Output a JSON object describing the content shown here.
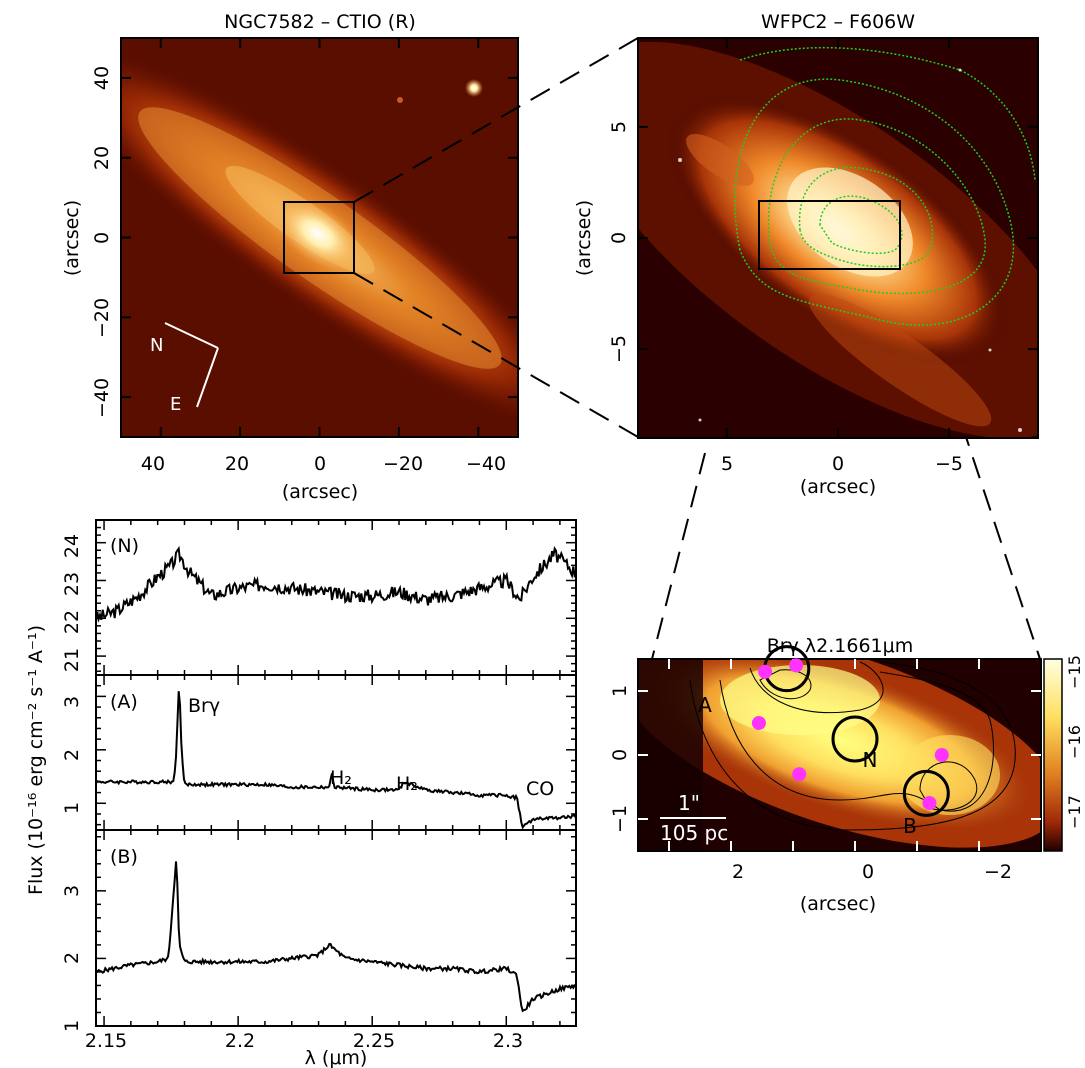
{
  "panels": {
    "ngc": {
      "title": "NGC7582 – CTIO (R)",
      "xlabel": "(arcsec)",
      "ylabel": "(arcsec)",
      "xticks": [
        "40",
        "20",
        "0",
        "−20",
        "−40"
      ],
      "yticks": [
        "40",
        "20",
        "0",
        "−20",
        "−40"
      ],
      "compass_n": "N",
      "compass_e": "E"
    },
    "wfpc": {
      "title": "WFPC2 – F606W",
      "xlabel": "(arcsec)",
      "ylabel": "(arcsec)",
      "xticks": [
        "5",
        "0",
        "−5"
      ],
      "yticks": [
        "5",
        "0",
        "−5"
      ]
    },
    "brg": {
      "title": "Brγ λ2.1661μm",
      "xlabel": "(arcsec)",
      "xticks": [
        "2",
        "0",
        "−2"
      ],
      "yticks": [
        "1",
        "0",
        "−1"
      ],
      "colorbar_ticks": [
        "−15",
        "−16",
        "−17"
      ],
      "label_n": "N",
      "label_a": "A",
      "label_b": "B",
      "scale_top": "1\"",
      "scale_bottom": "105 pc"
    },
    "spectra": {
      "ylabel": "Flux (10⁻¹⁶ erg cm⁻² s⁻¹ A⁻¹)",
      "xlabel": "λ (μm)",
      "xticks": [
        "2.15",
        "2.2",
        "2.25",
        "2.3"
      ],
      "n_label": "(N)",
      "n_yticks": [
        "21",
        "22",
        "23",
        "24"
      ],
      "a_label": "(A)",
      "a_yticks": [
        "1",
        "2",
        "3"
      ],
      "b_label": "(B)",
      "b_yticks": [
        "1",
        "2",
        "3"
      ],
      "line_brg": "Brγ",
      "line_h2a": "H₂",
      "line_h2b": "H₂",
      "line_co": "CO"
    }
  },
  "colors": {
    "image_dark": "#3a0000",
    "image_bright": "#fff6d0",
    "contour_green": "#22cc22",
    "marker_magenta": "#ff33ff"
  },
  "chart_data": [
    {
      "type": "heatmap",
      "title": "NGC7582 – CTIO (R)",
      "xlabel": "(arcsec)",
      "ylabel": "(arcsec)",
      "xlim": [
        50,
        -50
      ],
      "ylim": [
        -50,
        50
      ],
      "box": {
        "x": [
          9,
          -9
        ],
        "y": [
          -9,
          9
        ]
      }
    },
    {
      "type": "heatmap",
      "title": "WFPC2 – F606W",
      "xlabel": "(arcsec)",
      "ylabel": "(arcsec)",
      "xlim": [
        9,
        -9
      ],
      "ylim": [
        -9,
        9
      ],
      "box": {
        "x": [
          3.3,
          -2.8
        ],
        "y": [
          -1.4,
          1.7
        ]
      }
    },
    {
      "type": "heatmap",
      "title": "Brγ λ2.1661μm",
      "xlabel": "(arcsec)",
      "xlim": [
        3.5,
        -3.0
      ],
      "ylim": [
        -1.5,
        1.5
      ],
      "colorbar": [
        -17.3,
        -14.9
      ],
      "circles": [
        {
          "name": "A",
          "x": 1.1,
          "y": 1.35
        },
        {
          "name": "N",
          "x": 0.0,
          "y": 0.25
        },
        {
          "name": "B",
          "x": -1.15,
          "y": -0.6
        }
      ],
      "points": [
        {
          "x": 1.45,
          "y": 1.3
        },
        {
          "x": 0.95,
          "y": 1.4
        },
        {
          "x": 1.55,
          "y": 0.5
        },
        {
          "x": 0.9,
          "y": -0.3
        },
        {
          "x": -1.4,
          "y": 0.0
        },
        {
          "x": -1.2,
          "y": -0.75
        }
      ]
    },
    {
      "type": "line",
      "name": "(N)",
      "xlabel": "λ (μm)",
      "xlim": [
        2.147,
        2.326
      ],
      "ylim": [
        20.5,
        24.6
      ],
      "x": [
        2.147,
        2.155,
        2.163,
        2.17,
        2.175,
        2.178,
        2.182,
        2.19,
        2.2,
        2.21,
        2.22,
        2.23,
        2.24,
        2.25,
        2.26,
        2.27,
        2.28,
        2.29,
        2.3,
        2.305,
        2.31,
        2.318,
        2.326
      ],
      "y": [
        22.0,
        22.2,
        22.6,
        23.1,
        23.4,
        23.7,
        23.2,
        22.6,
        22.8,
        22.9,
        22.8,
        22.7,
        22.6,
        22.6,
        22.7,
        22.5,
        22.6,
        22.8,
        23.0,
        22.5,
        23.1,
        23.7,
        23.2
      ]
    },
    {
      "type": "line",
      "name": "(A)",
      "xlabel": "λ (μm)",
      "xlim": [
        2.147,
        2.326
      ],
      "ylim": [
        0.5,
        3.4
      ],
      "x": [
        2.147,
        2.16,
        2.17,
        2.176,
        2.177,
        2.178,
        2.179,
        2.18,
        2.19,
        2.2,
        2.21,
        2.22,
        2.23,
        2.234,
        2.235,
        2.236,
        2.25,
        2.26,
        2.262,
        2.27,
        2.28,
        2.29,
        2.3,
        2.304,
        2.306,
        2.31,
        2.326
      ],
      "y": [
        1.4,
        1.4,
        1.4,
        1.4,
        2.0,
        3.3,
        1.9,
        1.35,
        1.35,
        1.35,
        1.35,
        1.3,
        1.3,
        1.3,
        1.55,
        1.3,
        1.25,
        1.25,
        1.4,
        1.25,
        1.2,
        1.15,
        1.15,
        1.1,
        0.55,
        0.7,
        0.75
      ]
    },
    {
      "type": "line",
      "name": "(B)",
      "xlabel": "λ (μm)",
      "xlim": [
        2.147,
        2.326
      ],
      "ylim": [
        1.0,
        3.9
      ],
      "x": [
        2.147,
        2.16,
        2.17,
        2.174,
        2.176,
        2.177,
        2.178,
        2.18,
        2.19,
        2.2,
        2.21,
        2.22,
        2.23,
        2.234,
        2.24,
        2.25,
        2.26,
        2.27,
        2.28,
        2.29,
        2.3,
        2.304,
        2.306,
        2.31,
        2.32,
        2.326
      ],
      "y": [
        1.8,
        1.9,
        1.95,
        2.0,
        3.0,
        3.55,
        2.2,
        1.95,
        1.95,
        1.95,
        1.95,
        2.0,
        2.05,
        2.2,
        2.0,
        1.95,
        1.9,
        1.85,
        1.85,
        1.8,
        1.85,
        1.75,
        1.2,
        1.4,
        1.55,
        1.6
      ]
    }
  ]
}
